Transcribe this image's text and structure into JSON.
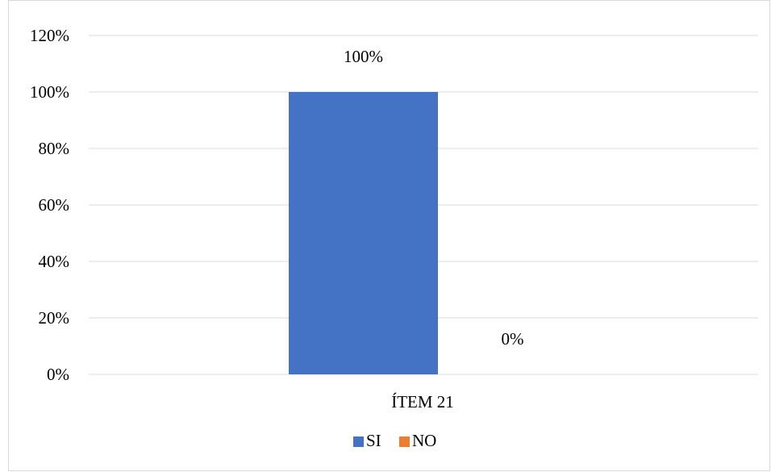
{
  "chart_data": {
    "type": "bar",
    "title": "",
    "xlabel": "",
    "ylabel": "",
    "categories": [
      "ÍTEM 21"
    ],
    "series": [
      {
        "name": "SI",
        "values": [
          1.0
        ],
        "color": "#4472C4",
        "label": "100%"
      },
      {
        "name": "NO",
        "values": [
          0.0
        ],
        "color": "#ED7D31",
        "label": "0%"
      }
    ],
    "ylim": [
      0,
      1.2
    ],
    "y_ticks": [
      {
        "value": 0,
        "label": "0%"
      },
      {
        "value": 0.2,
        "label": "20%"
      },
      {
        "value": 0.4,
        "label": "40%"
      },
      {
        "value": 0.6,
        "label": "60%"
      },
      {
        "value": 0.8,
        "label": "80%"
      },
      {
        "value": 1.0,
        "label": "100%"
      },
      {
        "value": 1.2,
        "label": "120%"
      }
    ],
    "grid": true,
    "gridline_color": "#d9d9d9",
    "legend_position": "bottom"
  }
}
